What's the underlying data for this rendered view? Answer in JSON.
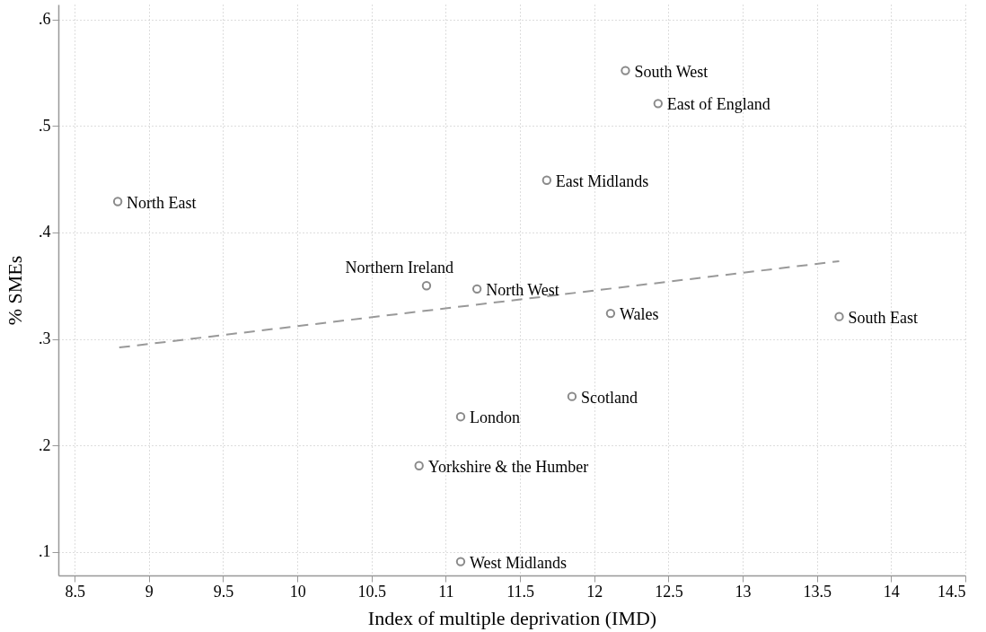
{
  "chart_data": {
    "type": "scatter",
    "xlabel": "Index of multiple deprivation (IMD)",
    "ylabel": "% SMEs",
    "xlim": [
      8.39,
      14.5
    ],
    "ylim": [
      0.078,
      0.614
    ],
    "xticks": [
      8.5,
      9,
      9.5,
      10,
      10.5,
      11,
      11.5,
      12,
      12.5,
      13,
      13.5,
      14,
      14.5
    ],
    "yticks": [
      {
        "value": 0.1,
        "label": ".1"
      },
      {
        "value": 0.2,
        "label": ".2"
      },
      {
        "value": 0.3,
        "label": ".3"
      },
      {
        "value": 0.4,
        "label": ".4"
      },
      {
        "value": 0.5,
        "label": ".5"
      },
      {
        "value": 0.6,
        "label": ".6"
      }
    ],
    "grid": true,
    "series": [
      {
        "type": "scatter",
        "marker": "circle",
        "color": "#595959",
        "x": [
          8.79,
          10.87,
          11.21,
          11.1,
          10.82,
          11.1,
          12.21,
          12.43,
          11.68,
          12.11,
          13.65,
          11.85
        ],
        "values": [
          0.429,
          0.35,
          0.347,
          0.227,
          0.181,
          0.091,
          0.552,
          0.521,
          0.449,
          0.324,
          0.321,
          0.246
        ]
      },
      {
        "type": "line",
        "line_style": "dashed",
        "color": "#999999",
        "x": [
          8.8,
          13.65
        ],
        "values": [
          0.292,
          0.373
        ]
      }
    ],
    "annotations": [
      {
        "text": "North East",
        "x": 8.79,
        "y": 0.429
      },
      {
        "text": "Northern Ireland",
        "x": 10.87,
        "y": 0.35
      },
      {
        "text": "North West",
        "x": 11.21,
        "y": 0.347
      },
      {
        "text": "London",
        "x": 11.1,
        "y": 0.227
      },
      {
        "text": "Yorkshire & the Humber",
        "x": 10.82,
        "y": 0.181
      },
      {
        "text": "West Midlands",
        "x": 11.1,
        "y": 0.091
      },
      {
        "text": "South West",
        "x": 12.21,
        "y": 0.552
      },
      {
        "text": "East of England",
        "x": 12.43,
        "y": 0.521
      },
      {
        "text": "East Midlands",
        "x": 11.68,
        "y": 0.449
      },
      {
        "text": "Wales",
        "x": 12.11,
        "y": 0.324
      },
      {
        "text": "South East",
        "x": 13.65,
        "y": 0.321
      },
      {
        "text": "Scotland",
        "x": 11.85,
        "y": 0.246
      }
    ]
  }
}
